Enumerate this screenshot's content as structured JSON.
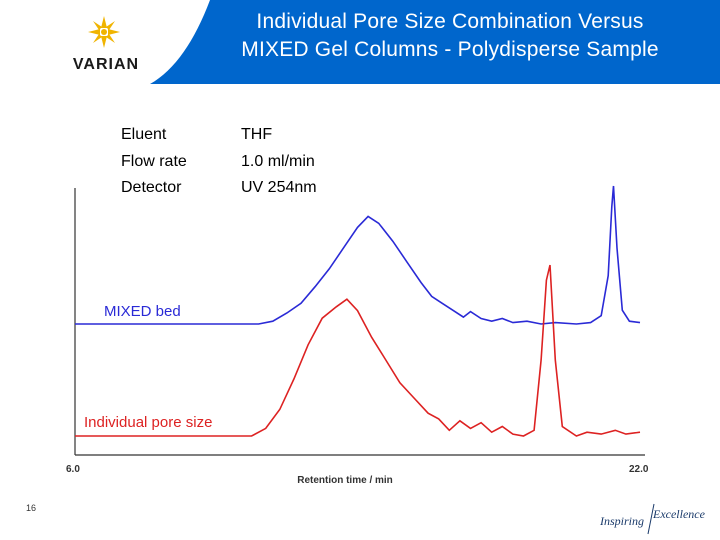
{
  "header": {
    "logo_text": "VARIAN",
    "title_line1": "Individual Pore Size Combination Versus",
    "title_line2": "MIXED Gel Columns - Polydisperse Sample",
    "colors": {
      "header_blue": "#0066cc",
      "logo_star": "#f0b400",
      "logo_text": "#1a1a1a"
    }
  },
  "conditions": [
    {
      "label": "Eluent",
      "value": "THF"
    },
    {
      "label": "Flow rate",
      "value": "1.0 ml/min"
    },
    {
      "label": "Detector",
      "value": "UV 254nm"
    }
  ],
  "chart_data": {
    "type": "line",
    "xlabel": "Retention time / min",
    "x_min_label": "6.0",
    "x_max_label": "22.0",
    "xlim": [
      6.0,
      22.0
    ],
    "grid": false,
    "series": [
      {
        "name": "MIXED bed",
        "color": "#2a2ad6",
        "points": [
          [
            6.0,
            0.0
          ],
          [
            10.0,
            0.0
          ],
          [
            11.2,
            0.0
          ],
          [
            11.6,
            0.02
          ],
          [
            12.0,
            0.08
          ],
          [
            12.4,
            0.15
          ],
          [
            12.8,
            0.27
          ],
          [
            13.2,
            0.4
          ],
          [
            13.6,
            0.55
          ],
          [
            14.0,
            0.7
          ],
          [
            14.3,
            0.78
          ],
          [
            14.6,
            0.73
          ],
          [
            15.0,
            0.6
          ],
          [
            15.4,
            0.45
          ],
          [
            15.8,
            0.3
          ],
          [
            16.1,
            0.2
          ],
          [
            16.4,
            0.15
          ],
          [
            16.7,
            0.1
          ],
          [
            17.0,
            0.05
          ],
          [
            17.2,
            0.09
          ],
          [
            17.5,
            0.04
          ],
          [
            17.8,
            0.02
          ],
          [
            18.1,
            0.04
          ],
          [
            18.4,
            0.01
          ],
          [
            18.8,
            0.02
          ],
          [
            19.2,
            0.0
          ],
          [
            19.6,
            0.01
          ],
          [
            20.2,
            0.0
          ],
          [
            20.6,
            0.01
          ],
          [
            20.9,
            0.06
          ],
          [
            21.1,
            0.35
          ],
          [
            21.2,
            0.85
          ],
          [
            21.25,
            1.0
          ],
          [
            21.35,
            0.55
          ],
          [
            21.5,
            0.1
          ],
          [
            21.7,
            0.02
          ],
          [
            22.0,
            0.01
          ]
        ]
      },
      {
        "name": "Individual pore size",
        "color": "#dd2222",
        "points": [
          [
            6.0,
            0.0
          ],
          [
            10.0,
            0.0
          ],
          [
            11.0,
            0.0
          ],
          [
            11.4,
            0.04
          ],
          [
            11.8,
            0.14
          ],
          [
            12.2,
            0.3
          ],
          [
            12.6,
            0.48
          ],
          [
            13.0,
            0.62
          ],
          [
            13.4,
            0.68
          ],
          [
            13.7,
            0.72
          ],
          [
            14.0,
            0.66
          ],
          [
            14.4,
            0.52
          ],
          [
            14.8,
            0.4
          ],
          [
            15.2,
            0.28
          ],
          [
            15.6,
            0.2
          ],
          [
            16.0,
            0.12
          ],
          [
            16.3,
            0.09
          ],
          [
            16.6,
            0.03
          ],
          [
            16.9,
            0.08
          ],
          [
            17.2,
            0.04
          ],
          [
            17.5,
            0.07
          ],
          [
            17.8,
            0.02
          ],
          [
            18.1,
            0.05
          ],
          [
            18.4,
            0.01
          ],
          [
            18.7,
            0.0
          ],
          [
            19.0,
            0.03
          ],
          [
            19.2,
            0.4
          ],
          [
            19.35,
            0.82
          ],
          [
            19.45,
            0.9
          ],
          [
            19.6,
            0.4
          ],
          [
            19.8,
            0.05
          ],
          [
            20.2,
            0.0
          ],
          [
            20.5,
            0.02
          ],
          [
            20.9,
            0.01
          ],
          [
            21.3,
            0.03
          ],
          [
            21.6,
            0.01
          ],
          [
            22.0,
            0.02
          ]
        ]
      }
    ]
  },
  "footer": {
    "page_number": "16",
    "tagline_left": "Inspiring",
    "tagline_right": "Excellence"
  }
}
